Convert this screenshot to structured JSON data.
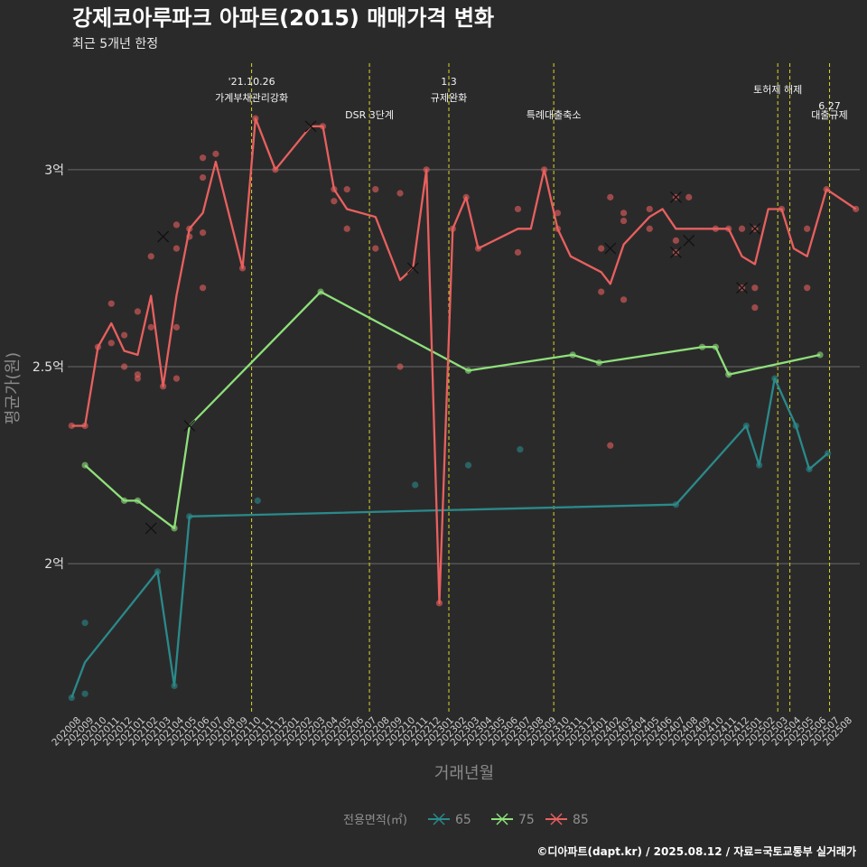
{
  "chart_data": {
    "type": "line",
    "title": "강제코아루파크 아파트(2015) 매매가격 변화",
    "subtitle": "최근 5개년 한정",
    "xlabel": "거래년월",
    "ylabel": "평균가(원)",
    "caption": "©디아파트(dapt.kr) / 2025.08.12 / 자료=국토교통부 실거래가",
    "legend_title": "전용면적(㎡)",
    "legend_position": "bottom",
    "ylim": [
      16200,
      32700
    ],
    "ytick_values": [
      20000,
      25000,
      30000
    ],
    "ytick_labels": [
      "2억",
      "2.5억",
      "3억"
    ],
    "categories": [
      "202008",
      "202009",
      "202010",
      "202011",
      "202012",
      "202101",
      "202102",
      "202103",
      "202104",
      "202105",
      "202106",
      "202107",
      "202108",
      "202109",
      "202110",
      "202111",
      "202112",
      "202201",
      "202202",
      "202203",
      "202204",
      "202205",
      "202206",
      "202207",
      "202208",
      "202209",
      "202210",
      "202211",
      "202212",
      "202301",
      "202302",
      "202303",
      "202304",
      "202305",
      "202306",
      "202307",
      "202308",
      "202309",
      "202310",
      "202311",
      "202312",
      "202401",
      "202402",
      "202403",
      "202404",
      "202405",
      "202406",
      "202407",
      "202408",
      "202409",
      "202410",
      "202411",
      "202412",
      "202501",
      "202502",
      "202503",
      "202504",
      "202505",
      "202506",
      "202507",
      "202508"
    ],
    "x_axis_start": "2020-08-01",
    "x_axis_end": "2025-08-10",
    "series": [
      {
        "name": "65",
        "color": "#2a8a8a",
        "line": [
          {
            "x": "2020-08-10",
            "y": 16600
          },
          {
            "x": "2020-09-10",
            "y": 17500
          },
          {
            "x": "2021-02-25",
            "y": 19800
          },
          {
            "x": "2021-04-05",
            "y": 16900
          },
          {
            "x": "2021-05-10",
            "y": 21200
          },
          {
            "x": "2024-06-10",
            "y": 21500
          },
          {
            "x": "2024-11-20",
            "y": 23500
          },
          {
            "x": "2024-12-20",
            "y": 22500
          },
          {
            "x": "2025-01-25",
            "y": 24700
          },
          {
            "x": "2025-03-15",
            "y": 23500
          },
          {
            "x": "2025-04-15",
            "y": 22400
          },
          {
            "x": "2025-05-28",
            "y": 22800
          }
        ],
        "points": [
          {
            "x": "2020-08-10",
            "y": 16600
          },
          {
            "x": "2020-09-10",
            "y": 16700
          },
          {
            "x": "2020-09-10",
            "y": 18500
          },
          {
            "x": "2021-02-25",
            "y": 19800
          },
          {
            "x": "2021-04-05",
            "y": 16900
          },
          {
            "x": "2021-05-10",
            "y": 21200
          },
          {
            "x": "2021-10-15",
            "y": 21600
          },
          {
            "x": "2022-10-15",
            "y": 22000
          },
          {
            "x": "2023-02-15",
            "y": 22500
          },
          {
            "x": "2023-06-15",
            "y": 22900
          },
          {
            "x": "2024-06-10",
            "y": 21500
          },
          {
            "x": "2024-11-20",
            "y": 23500
          },
          {
            "x": "2024-12-20",
            "y": 22500
          },
          {
            "x": "2025-01-25",
            "y": 24700
          },
          {
            "x": "2025-03-15",
            "y": 23500
          },
          {
            "x": "2025-04-15",
            "y": 22400
          },
          {
            "x": "2025-05-28",
            "y": 22800
          }
        ],
        "crosses": []
      },
      {
        "name": "75",
        "color": "#8ee07a",
        "line": [
          {
            "x": "2020-09-10",
            "y": 22500
          },
          {
            "x": "2020-12-10",
            "y": 21600
          },
          {
            "x": "2021-01-10",
            "y": 21600
          },
          {
            "x": "2021-04-05",
            "y": 20900
          },
          {
            "x": "2021-05-10",
            "y": 23500
          },
          {
            "x": "2022-03-10",
            "y": 26900
          },
          {
            "x": "2023-02-15",
            "y": 24900
          },
          {
            "x": "2023-10-15",
            "y": 25300
          },
          {
            "x": "2023-12-15",
            "y": 25100
          },
          {
            "x": "2024-08-10",
            "y": 25500
          },
          {
            "x": "2024-09-10",
            "y": 25500
          },
          {
            "x": "2024-10-10",
            "y": 24800
          },
          {
            "x": "2025-05-10",
            "y": 25300
          }
        ],
        "points": [
          {
            "x": "2020-09-10",
            "y": 22500
          },
          {
            "x": "2020-12-10",
            "y": 21600
          },
          {
            "x": "2021-01-10",
            "y": 21600
          },
          {
            "x": "2021-04-05",
            "y": 20900
          },
          {
            "x": "2022-03-10",
            "y": 26900
          },
          {
            "x": "2023-02-15",
            "y": 24900
          },
          {
            "x": "2023-10-15",
            "y": 25300
          },
          {
            "x": "2023-12-15",
            "y": 25100
          },
          {
            "x": "2024-08-10",
            "y": 25500
          },
          {
            "x": "2024-09-10",
            "y": 25500
          },
          {
            "x": "2024-10-10",
            "y": 24800
          },
          {
            "x": "2025-05-10",
            "y": 25300
          }
        ],
        "crosses": [
          {
            "x": "2021-02-10",
            "y": 20900
          },
          {
            "x": "2021-05-10",
            "y": 23500
          }
        ]
      },
      {
        "name": "85",
        "color": "#e8605e",
        "line": [
          {
            "x": "2020-08-10",
            "y": 23500
          },
          {
            "x": "2020-09-10",
            "y": 23500
          },
          {
            "x": "2020-10-10",
            "y": 25500
          },
          {
            "x": "2020-11-10",
            "y": 26100
          },
          {
            "x": "2020-12-10",
            "y": 25400
          },
          {
            "x": "2021-01-10",
            "y": 25300
          },
          {
            "x": "2021-02-10",
            "y": 26800
          },
          {
            "x": "2021-03-10",
            "y": 24500
          },
          {
            "x": "2021-04-10",
            "y": 26800
          },
          {
            "x": "2021-05-10",
            "y": 28500
          },
          {
            "x": "2021-06-10",
            "y": 28900
          },
          {
            "x": "2021-07-10",
            "y": 30200
          },
          {
            "x": "2021-09-10",
            "y": 27500
          },
          {
            "x": "2021-10-10",
            "y": 31300
          },
          {
            "x": "2021-11-25",
            "y": 30000
          },
          {
            "x": "2022-02-15",
            "y": 31100
          },
          {
            "x": "2022-03-15",
            "y": 31100
          },
          {
            "x": "2022-04-10",
            "y": 29500
          },
          {
            "x": "2022-05-10",
            "y": 29000
          },
          {
            "x": "2022-07-15",
            "y": 28800
          },
          {
            "x": "2022-09-10",
            "y": 27200
          },
          {
            "x": "2022-10-10",
            "y": 27500
          },
          {
            "x": "2022-11-10",
            "y": 30000
          },
          {
            "x": "2022-12-10",
            "y": 19000
          },
          {
            "x": "2023-01-10",
            "y": 28500
          },
          {
            "x": "2023-02-10",
            "y": 29300
          },
          {
            "x": "2023-03-10",
            "y": 28000
          },
          {
            "x": "2023-06-10",
            "y": 28500
          },
          {
            "x": "2023-07-10",
            "y": 28500
          },
          {
            "x": "2023-08-10",
            "y": 30000
          },
          {
            "x": "2023-09-10",
            "y": 28500
          },
          {
            "x": "2023-10-10",
            "y": 27800
          },
          {
            "x": "2023-12-20",
            "y": 27400
          },
          {
            "x": "2024-01-10",
            "y": 27100
          },
          {
            "x": "2024-02-10",
            "y": 28100
          },
          {
            "x": "2024-04-10",
            "y": 28800
          },
          {
            "x": "2024-05-10",
            "y": 29000
          },
          {
            "x": "2024-06-10",
            "y": 28500
          },
          {
            "x": "2024-07-10",
            "y": 28500
          },
          {
            "x": "2024-09-10",
            "y": 28500
          },
          {
            "x": "2024-10-10",
            "y": 28500
          },
          {
            "x": "2024-11-10",
            "y": 27800
          },
          {
            "x": "2024-12-10",
            "y": 27600
          },
          {
            "x": "2025-01-10",
            "y": 29000
          },
          {
            "x": "2025-02-10",
            "y": 29000
          },
          {
            "x": "2025-03-10",
            "y": 28000
          },
          {
            "x": "2025-04-10",
            "y": 27800
          },
          {
            "x": "2025-05-25",
            "y": 29500
          },
          {
            "x": "2025-08-01",
            "y": 29000
          }
        ],
        "points": [
          {
            "x": "2020-08-10",
            "y": 23500
          },
          {
            "x": "2020-09-10",
            "y": 23500
          },
          {
            "x": "2020-10-10",
            "y": 25500
          },
          {
            "x": "2020-11-10",
            "y": 26600
          },
          {
            "x": "2020-11-10",
            "y": 25600
          },
          {
            "x": "2020-12-10",
            "y": 25800
          },
          {
            "x": "2020-12-10",
            "y": 25000
          },
          {
            "x": "2021-01-10",
            "y": 26400
          },
          {
            "x": "2021-01-10",
            "y": 24800
          },
          {
            "x": "2021-01-10",
            "y": 24700
          },
          {
            "x": "2021-02-10",
            "y": 27800
          },
          {
            "x": "2021-02-10",
            "y": 26000
          },
          {
            "x": "2021-03-10",
            "y": 24500
          },
          {
            "x": "2021-04-10",
            "y": 28600
          },
          {
            "x": "2021-04-10",
            "y": 28000
          },
          {
            "x": "2021-04-10",
            "y": 26000
          },
          {
            "x": "2021-04-10",
            "y": 24700
          },
          {
            "x": "2021-05-10",
            "y": 28500
          },
          {
            "x": "2021-05-10",
            "y": 28300
          },
          {
            "x": "2021-06-10",
            "y": 30300
          },
          {
            "x": "2021-06-10",
            "y": 29800
          },
          {
            "x": "2021-06-10",
            "y": 28400
          },
          {
            "x": "2021-06-10",
            "y": 27000
          },
          {
            "x": "2021-07-10",
            "y": 30400
          },
          {
            "x": "2021-09-10",
            "y": 27500
          },
          {
            "x": "2021-10-10",
            "y": 31300
          },
          {
            "x": "2021-11-25",
            "y": 30000
          },
          {
            "x": "2022-03-15",
            "y": 31100
          },
          {
            "x": "2022-04-10",
            "y": 29500
          },
          {
            "x": "2022-04-10",
            "y": 29200
          },
          {
            "x": "2022-05-10",
            "y": 29500
          },
          {
            "x": "2022-05-10",
            "y": 28500
          },
          {
            "x": "2022-07-15",
            "y": 29500
          },
          {
            "x": "2022-07-15",
            "y": 28000
          },
          {
            "x": "2022-09-10",
            "y": 29400
          },
          {
            "x": "2022-09-10",
            "y": 25000
          },
          {
            "x": "2022-11-10",
            "y": 30000
          },
          {
            "x": "2022-12-10",
            "y": 19000
          },
          {
            "x": "2023-01-10",
            "y": 28500
          },
          {
            "x": "2023-02-10",
            "y": 29300
          },
          {
            "x": "2023-03-10",
            "y": 28000
          },
          {
            "x": "2023-06-10",
            "y": 29000
          },
          {
            "x": "2023-06-10",
            "y": 27900
          },
          {
            "x": "2023-08-10",
            "y": 30000
          },
          {
            "x": "2023-09-10",
            "y": 28900
          },
          {
            "x": "2023-09-10",
            "y": 28500
          },
          {
            "x": "2023-12-20",
            "y": 28000
          },
          {
            "x": "2023-12-20",
            "y": 26900
          },
          {
            "x": "2024-01-10",
            "y": 29300
          },
          {
            "x": "2024-01-10",
            "y": 23000
          },
          {
            "x": "2024-02-10",
            "y": 28900
          },
          {
            "x": "2024-02-10",
            "y": 28700
          },
          {
            "x": "2024-02-10",
            "y": 26700
          },
          {
            "x": "2024-04-10",
            "y": 29000
          },
          {
            "x": "2024-04-10",
            "y": 28500
          },
          {
            "x": "2024-06-10",
            "y": 29300
          },
          {
            "x": "2024-06-10",
            "y": 28200
          },
          {
            "x": "2024-06-10",
            "y": 27900
          },
          {
            "x": "2024-07-10",
            "y": 29300
          },
          {
            "x": "2024-09-10",
            "y": 28500
          },
          {
            "x": "2024-10-10",
            "y": 28500
          },
          {
            "x": "2024-11-10",
            "y": 28500
          },
          {
            "x": "2024-11-10",
            "y": 27000
          },
          {
            "x": "2024-12-10",
            "y": 28500
          },
          {
            "x": "2024-12-10",
            "y": 27000
          },
          {
            "x": "2024-12-10",
            "y": 26500
          },
          {
            "x": "2025-02-10",
            "y": 29000
          },
          {
            "x": "2025-04-10",
            "y": 28500
          },
          {
            "x": "2025-04-10",
            "y": 27000
          },
          {
            "x": "2025-05-25",
            "y": 29500
          },
          {
            "x": "2025-08-01",
            "y": 29000
          }
        ],
        "crosses": [
          {
            "x": "2021-03-10",
            "y": 28300
          },
          {
            "x": "2022-02-15",
            "y": 31100
          },
          {
            "x": "2022-10-10",
            "y": 27500
          },
          {
            "x": "2024-01-10",
            "y": 28000
          },
          {
            "x": "2024-06-10",
            "y": 29300
          },
          {
            "x": "2024-06-10",
            "y": 27900
          },
          {
            "x": "2024-07-10",
            "y": 28200
          },
          {
            "x": "2024-11-10",
            "y": 27000
          },
          {
            "x": "2024-12-10",
            "y": 28500
          }
        ]
      }
    ],
    "events": [
      {
        "x": "2021-10-01",
        "line1": "'21.10.26",
        "line2": "가계부채관리강화"
      },
      {
        "x": "2022-07-01",
        "line1": "",
        "line2": "DSR 3단계"
      },
      {
        "x": "2023-01-01",
        "line1": "1.3",
        "line2": "규제완화"
      },
      {
        "x": "2023-09-01",
        "line1": "",
        "line2": "특례대출축소"
      },
      {
        "x": "2025-02-01",
        "line1": "토허제 해제",
        "line2": ""
      },
      {
        "x": "2025-03-01",
        "line1": "",
        "line2": ""
      },
      {
        "x": "2025-06-01",
        "line1": "6.27",
        "line2": "대출규제"
      }
    ]
  }
}
